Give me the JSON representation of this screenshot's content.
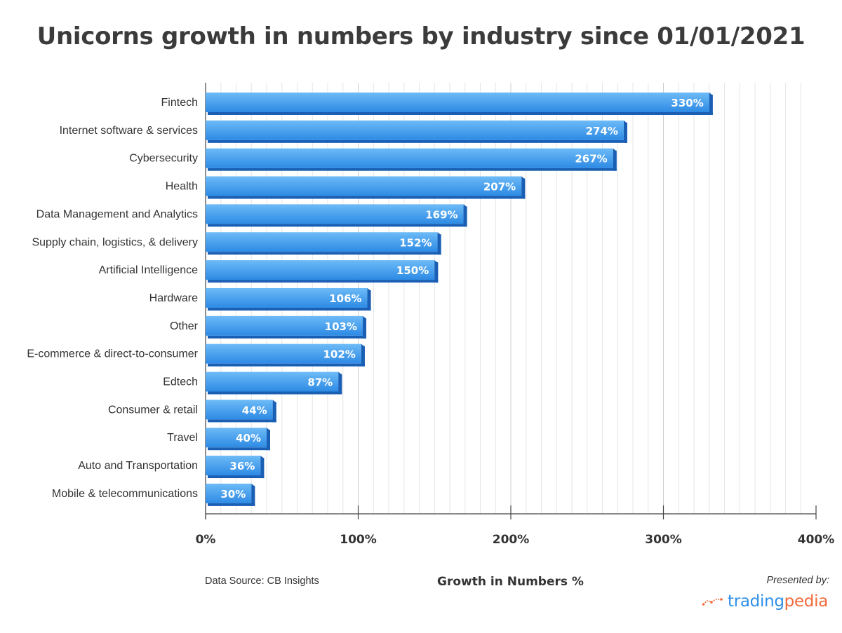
{
  "chart_data": {
    "type": "bar",
    "orientation": "horizontal",
    "title": "Unicorns growth in numbers by industry since 01/01/2021",
    "xlabel": "Growth in Numbers %",
    "ylabel": "",
    "xlim": [
      0,
      400
    ],
    "xticks": [
      "0%",
      "100%",
      "200%",
      "300%",
      "400%"
    ],
    "grid": true,
    "categories": [
      "Fintech",
      "Internet software & services",
      "Cybersecurity",
      "Health",
      "Data Management and Analytics",
      "Supply chain, logistics, & delivery",
      "Artificial Intelligence",
      "Hardware",
      "Other",
      "E-commerce & direct-to-consumer",
      "Edtech",
      "Consumer & retail",
      "Travel",
      "Auto and Transportation",
      "Mobile & telecommunications"
    ],
    "values": [
      330,
      274,
      267,
      207,
      169,
      152,
      150,
      106,
      103,
      102,
      87,
      44,
      40,
      36,
      30
    ],
    "data_labels": [
      "330%",
      "274%",
      "267%",
      "207%",
      "169%",
      "152%",
      "150%",
      "106%",
      "103%",
      "102%",
      "87%",
      "44%",
      "40%",
      "36%",
      "30%"
    ],
    "colors": {
      "bar_top": "#6dbbf7",
      "bar_bottom": "#2d8ae4",
      "bar_side": "#1a5fb4"
    }
  },
  "footer": {
    "source": "Data Source: CB Insights",
    "presented_by": "Presented by:",
    "brand_part1": "trading",
    "brand_part2": "pedia"
  }
}
